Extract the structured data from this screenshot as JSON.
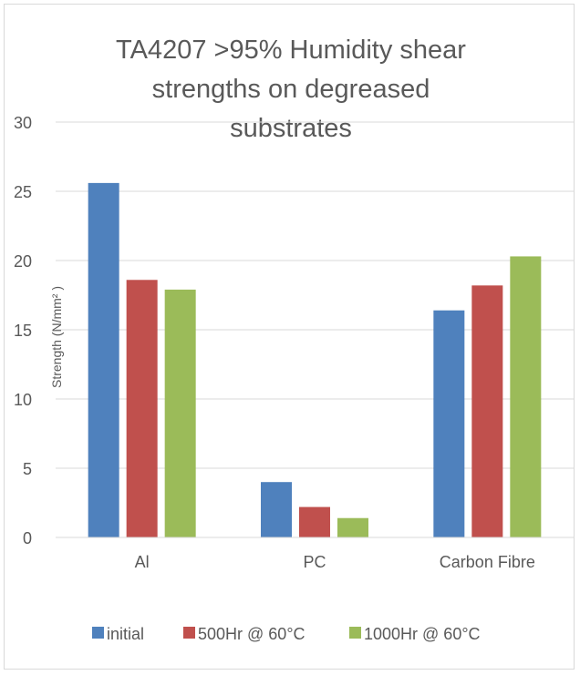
{
  "chart_data": {
    "type": "bar",
    "title_lines": [
      "TA4207 >95% Humidity shear",
      "strengths on degreased",
      "substrates"
    ],
    "xlabel": "",
    "ylabel": "Strength (N/mm² )",
    "categories": [
      "Al",
      "PC",
      "Carbon Fibre"
    ],
    "series": [
      {
        "name": "initial",
        "color": "#4f81bd",
        "values": [
          25.6,
          4.0,
          16.4
        ]
      },
      {
        "name": "500Hr @ 60°C",
        "color": "#c0504d",
        "values": [
          18.6,
          2.2,
          18.2
        ]
      },
      {
        "name": "1000Hr @ 60°C",
        "color": "#9bbb59",
        "values": [
          17.9,
          1.4,
          20.3
        ]
      }
    ],
    "ylim": [
      0,
      30
    ],
    "yticks": [
      "0",
      "5",
      "10",
      "15",
      "20",
      "25",
      "30"
    ],
    "grid": true,
    "legend_position": "bottom"
  }
}
